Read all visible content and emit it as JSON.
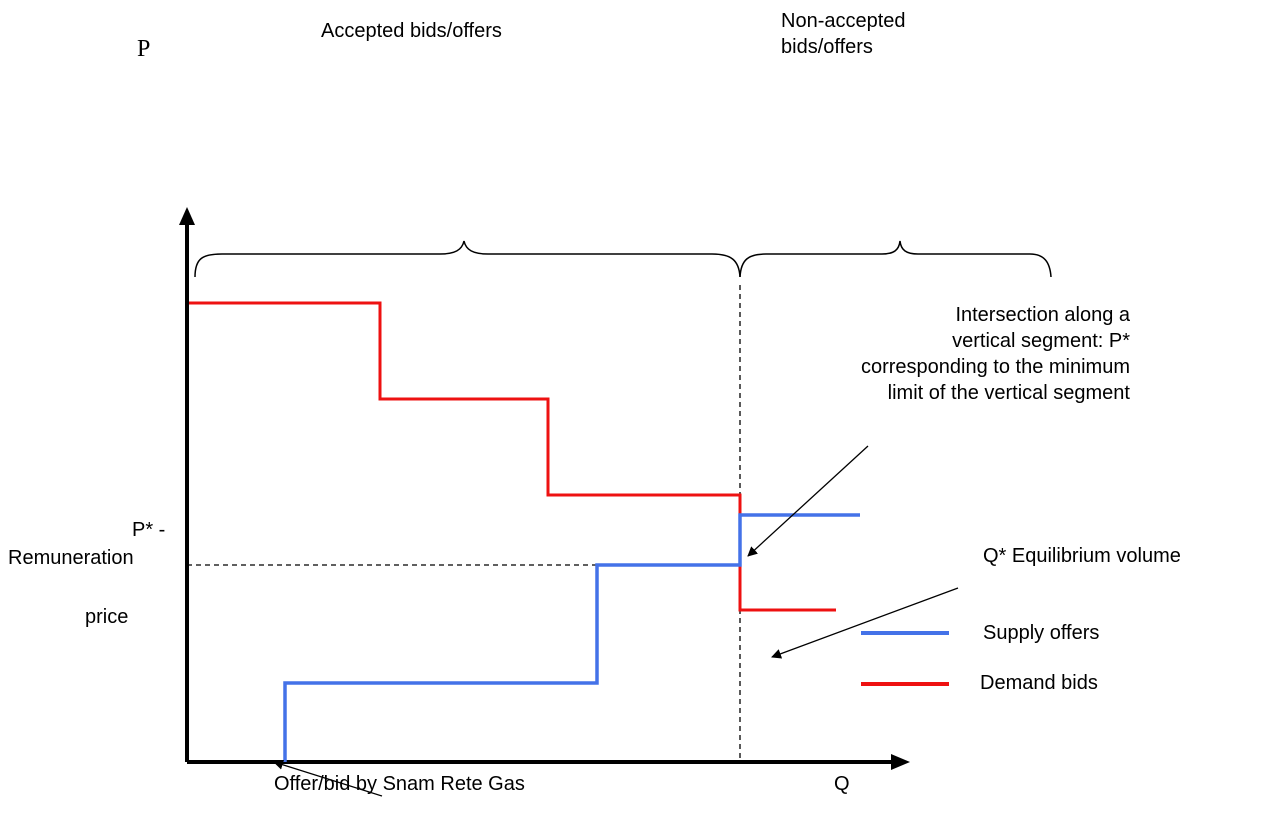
{
  "axes": {
    "y_label": "P",
    "x_label": "Q"
  },
  "brackets": {
    "accepted": "Accepted bids/offers",
    "non_accepted": "Non-accepted\nbids/offers"
  },
  "price_label": {
    "line1": "P* -",
    "line2": "Remuneration",
    "line3": "price"
  },
  "annotations": {
    "intersection": "Intersection along a\nvertical segment: P*\ncorresponding to the minimum\nlimit of the vertical segment",
    "equilibrium": "Q* Equilibrium volume",
    "snam": "Offer/bid by Snam Rete Gas"
  },
  "legend": {
    "supply": "Supply offers",
    "demand": "Demand bids"
  },
  "colors": {
    "supply": "#4472e8",
    "demand": "#ee1111",
    "axis": "#000000"
  }
}
